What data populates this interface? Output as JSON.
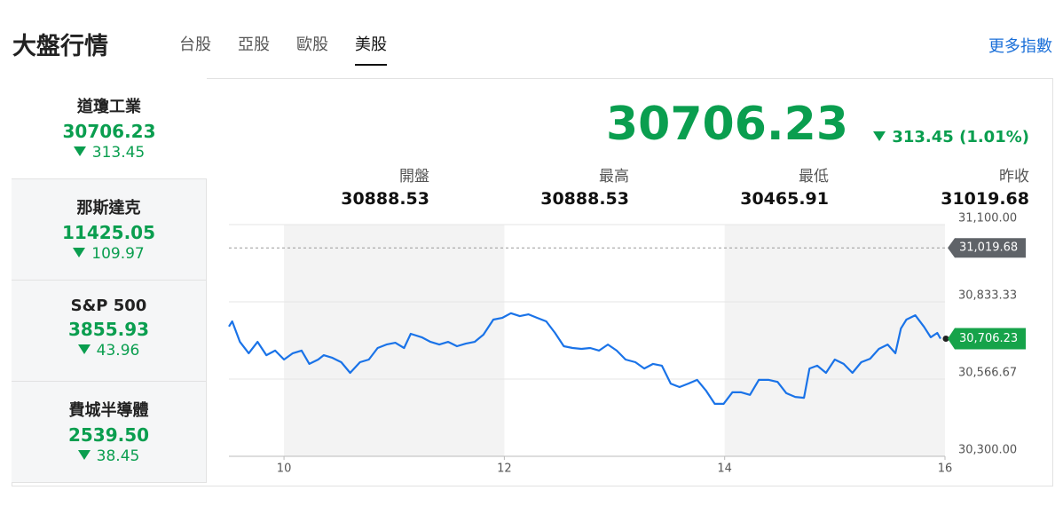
{
  "header": {
    "title": "大盤行情",
    "tabs": [
      "台股",
      "亞股",
      "歐股",
      "美股"
    ],
    "active_tab": 3,
    "more": "更多指數"
  },
  "indices": [
    {
      "name": "道瓊工業",
      "price": "30706.23",
      "change": "313.45"
    },
    {
      "name": "那斯達克",
      "price": "11425.05",
      "change": "109.97"
    },
    {
      "name": "S&P 500",
      "price": "3855.93",
      "change": "43.96"
    },
    {
      "name": "費城半導體",
      "price": "2539.50",
      "change": "38.45"
    }
  ],
  "quote": {
    "price": "30706.23",
    "change": "313.45 (1.01%)",
    "stats": [
      {
        "label": "開盤",
        "value": "30888.53"
      },
      {
        "label": "最高",
        "value": "30888.53"
      },
      {
        "label": "最低",
        "value": "30465.91"
      },
      {
        "label": "昨收",
        "value": "31019.68"
      }
    ]
  },
  "chart_data": {
    "type": "line",
    "color": "#1a73e8",
    "x": [
      9.5,
      9.53,
      9.6,
      9.68,
      9.76,
      9.84,
      9.92,
      10.0,
      10.08,
      10.16,
      10.23,
      10.31,
      10.36,
      10.44,
      10.52,
      10.6,
      10.69,
      10.77,
      10.85,
      10.93,
      11.01,
      11.09,
      11.15,
      11.25,
      11.33,
      11.41,
      11.49,
      11.57,
      11.65,
      11.73,
      11.81,
      11.9,
      11.98,
      12.06,
      12.14,
      12.22,
      12.3,
      12.38,
      12.46,
      12.54,
      12.62,
      12.7,
      12.78,
      12.86,
      12.94,
      13.02,
      13.1,
      13.19,
      13.27,
      13.35,
      13.43,
      13.51,
      13.59,
      13.67,
      13.75,
      13.83,
      13.91,
      13.99,
      14.07,
      14.15,
      14.23,
      14.31,
      14.4,
      14.48,
      14.56,
      14.64,
      14.72,
      14.77,
      14.84,
      14.92,
      15.0,
      15.08,
      15.16,
      15.24,
      15.32,
      15.4,
      15.48,
      15.55,
      15.6,
      15.65,
      15.73,
      15.81,
      15.87,
      15.93,
      15.96
    ],
    "values": [
      30748,
      30766,
      30695,
      30656,
      30695,
      30649,
      30665,
      30634,
      30656,
      30665,
      30619,
      30634,
      30649,
      30640,
      30625,
      30588,
      30625,
      30634,
      30674,
      30686,
      30692,
      30674,
      30723,
      30711,
      30695,
      30686,
      30695,
      30680,
      30689,
      30695,
      30720,
      30772,
      30778,
      30794,
      30784,
      30790,
      30778,
      30766,
      30726,
      30680,
      30674,
      30671,
      30674,
      30665,
      30686,
      30665,
      30634,
      30625,
      30603,
      30619,
      30613,
      30551,
      30539,
      30551,
      30564,
      30527,
      30481,
      30481,
      30521,
      30521,
      30512,
      30564,
      30564,
      30557,
      30518,
      30505,
      30502,
      30603,
      30613,
      30588,
      30634,
      30619,
      30588,
      30625,
      30637,
      30671,
      30686,
      30656,
      30741,
      30772,
      30787,
      30747,
      30711,
      30726,
      30706.23
    ],
    "xlim": [
      9.5,
      16
    ],
    "ylim": [
      30300,
      31100
    ],
    "xticks": [
      10,
      12,
      14,
      16
    ],
    "yticks": [
      {
        "value": 30300,
        "label": "30,300.00"
      },
      {
        "value": 30566.67,
        "label": "30,566.67"
      },
      {
        "value": 30833.33,
        "label": "30,833.33"
      },
      {
        "value": 31100,
        "label": "31,100.00"
      }
    ],
    "reference": {
      "value": 31019.68,
      "label": "31,019.68"
    },
    "last": {
      "value": 30706.23,
      "label": "30,706.23"
    }
  }
}
